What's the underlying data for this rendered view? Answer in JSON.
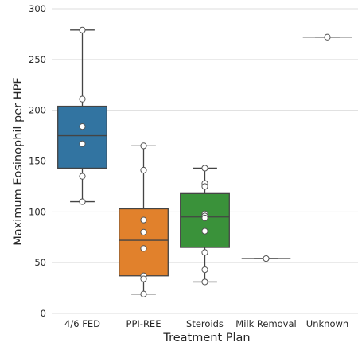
{
  "chart_data": {
    "type": "box",
    "xlabel": "Treatment Plan",
    "ylabel": "Maximum Eosinophil per HPF",
    "ylim": [
      0,
      300
    ],
    "yticks": [
      0,
      50,
      100,
      150,
      200,
      250,
      300
    ],
    "grid": "horizontal",
    "categories": [
      "4/6 FED",
      "PPI-REE",
      "Steroids",
      "Milk Removal",
      "Unknown"
    ],
    "colors": [
      "#3274a1",
      "#e1812c",
      "#3a923a",
      "#c03d3e",
      "#9372b2"
    ],
    "boxes": [
      {
        "whisker_low": 110,
        "q1": 143,
        "median": 175,
        "q3": 204,
        "whisker_high": 279
      },
      {
        "whisker_low": 19,
        "q1": 37,
        "median": 72,
        "q3": 103,
        "whisker_high": 165
      },
      {
        "whisker_low": 31,
        "q1": 65,
        "median": 95,
        "q3": 118,
        "whisker_high": 143
      },
      {
        "whisker_low": 54,
        "q1": 54,
        "median": 54,
        "q3": 54,
        "whisker_high": 54
      },
      {
        "whisker_low": 272,
        "q1": 272,
        "median": 272,
        "q3": 272,
        "whisker_high": 272
      }
    ],
    "points": [
      [
        279,
        211,
        184,
        167,
        135,
        110
      ],
      [
        165,
        141,
        92,
        80,
        64,
        37,
        34,
        19
      ],
      [
        143,
        128,
        125,
        98,
        96,
        94,
        81,
        60,
        43,
        31
      ],
      [
        54
      ],
      [
        272
      ]
    ]
  }
}
